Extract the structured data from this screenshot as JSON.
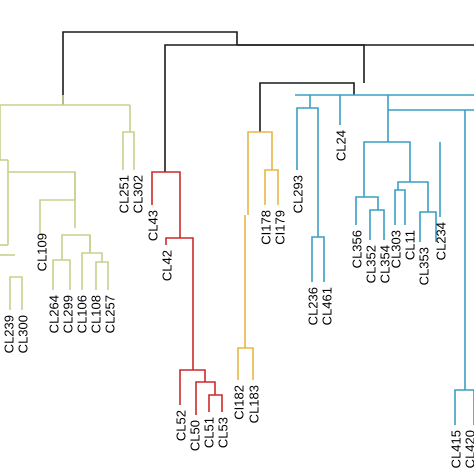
{
  "colors": {
    "root": "#1a1a1a",
    "olive": "#c5d08e",
    "red": "#cc2a2a",
    "orange": "#e8b545",
    "teal": "#3a9ec4"
  },
  "leaves": [
    {
      "id": "CL239",
      "color": "olive"
    },
    {
      "id": "CL300",
      "color": "olive"
    },
    {
      "id": "CL109",
      "color": "olive"
    },
    {
      "id": "CL264",
      "color": "olive"
    },
    {
      "id": "CL299",
      "color": "olive"
    },
    {
      "id": "CL106",
      "color": "olive"
    },
    {
      "id": "CL108",
      "color": "olive"
    },
    {
      "id": "CL257",
      "color": "olive"
    },
    {
      "id": "CL251",
      "color": "olive"
    },
    {
      "id": "CL302",
      "color": "olive"
    },
    {
      "id": "CL43",
      "color": "red"
    },
    {
      "id": "CL42",
      "color": "red"
    },
    {
      "id": "CL52",
      "color": "red"
    },
    {
      "id": "CL50",
      "color": "red"
    },
    {
      "id": "CL51",
      "color": "red"
    },
    {
      "id": "CL53",
      "color": "red"
    },
    {
      "id": "CI178",
      "color": "orange"
    },
    {
      "id": "CI179",
      "color": "orange"
    },
    {
      "id": "CI182",
      "color": "orange"
    },
    {
      "id": "CL183",
      "color": "orange"
    },
    {
      "id": "CL293",
      "color": "teal"
    },
    {
      "id": "CL236",
      "color": "teal"
    },
    {
      "id": "CL461",
      "color": "teal"
    },
    {
      "id": "CL24",
      "color": "teal"
    },
    {
      "id": "CL356",
      "color": "teal"
    },
    {
      "id": "CL352",
      "color": "teal"
    },
    {
      "id": "CL354",
      "color": "teal"
    },
    {
      "id": "CL303",
      "color": "teal"
    },
    {
      "id": "CL11",
      "color": "teal"
    },
    {
      "id": "CL353",
      "color": "teal"
    },
    {
      "id": "CL234",
      "color": "teal"
    },
    {
      "id": "CL415",
      "color": "teal"
    },
    {
      "id": "CL420",
      "color": "teal"
    }
  ]
}
